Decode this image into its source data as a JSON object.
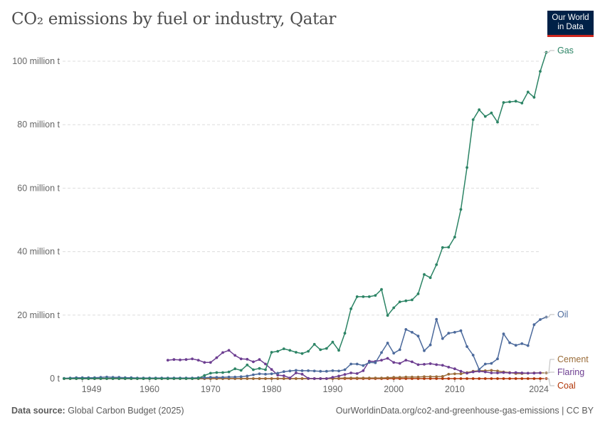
{
  "title_part1": "CO",
  "title_sub": "₂",
  "title_part2": " emissions by fuel or industry, Qatar",
  "logo": {
    "line1": "Our World",
    "line2": "in Data"
  },
  "footer": {
    "source_label": "Data source:",
    "source_value": "Global Carbon Budget (2025)",
    "url": "OurWorldinData.org/co2-and-greenhouse-gas-emissions | CC BY"
  },
  "chart_data": {
    "type": "line",
    "xlim": [
      1946,
      2024
    ],
    "ylim": [
      0,
      100
    ],
    "y_ticks": [
      0,
      20,
      40,
      60,
      80,
      100
    ],
    "y_tick_labels": [
      "0 t",
      "20 million t",
      "40 million t",
      "60 million t",
      "80 million t",
      "100 million t"
    ],
    "x_ticks": [
      1949,
      1960,
      1970,
      1980,
      1990,
      2000,
      2010,
      2024
    ],
    "x_tick_labels": [
      "1949",
      "1960",
      "1970",
      "1980",
      "1990",
      "2000",
      "2010",
      "2024"
    ],
    "grid": "horizontal dashed",
    "legend": "line-end labels on right",
    "series": [
      {
        "name": "Gas",
        "color": "#2c8465",
        "start": 1946,
        "values": [
          0,
          0,
          0,
          0,
          0,
          0,
          0,
          0,
          0,
          0,
          0,
          0,
          0,
          0,
          0,
          0,
          0,
          0,
          0,
          0,
          0,
          0,
          0.1,
          1,
          1.7,
          1.9,
          1.9,
          2.1,
          3.1,
          2.6,
          4.3,
          2.8,
          3.2,
          2.8,
          8.3,
          8.6,
          9.4,
          8.9,
          8.3,
          7.9,
          8.6,
          10.8,
          9.1,
          9.5,
          11.5,
          8.9,
          14.3,
          22,
          25.8,
          25.8,
          25.8,
          26.2,
          28.1,
          19.9,
          22.3,
          24.2,
          24.5,
          24.8,
          26.7,
          32.8,
          31.8,
          35.9,
          41.3,
          41.4,
          44.6,
          53.3,
          66.5,
          81.6,
          84.7,
          82.6,
          83.7,
          80.8,
          87,
          87.2,
          87.4,
          86.8,
          90.3,
          88.6,
          96.8,
          102.8
        ]
      },
      {
        "name": "Oil",
        "color": "#4c6a9c",
        "start": 1946,
        "values": [
          0.1,
          0.2,
          0.3,
          0.3,
          0.3,
          0.3,
          0.4,
          0.5,
          0.4,
          0.4,
          0.3,
          0.3,
          0.2,
          0.2,
          0.2,
          0.2,
          0.2,
          0.2,
          0.2,
          0.2,
          0.2,
          0.2,
          0.3,
          0.3,
          0.4,
          0.4,
          0.4,
          0.5,
          0.5,
          0.6,
          0.8,
          1.2,
          1.5,
          1.4,
          1.5,
          1.7,
          2.2,
          2.4,
          2.6,
          2.5,
          2.5,
          2.4,
          2.3,
          2.3,
          2.5,
          2.4,
          2.8,
          4.6,
          4.6,
          4.1,
          5.1,
          5,
          8.2,
          11.2,
          8,
          9.1,
          15.5,
          14.6,
          13.4,
          8.8,
          10.6,
          18.7,
          12.6,
          14.3,
          14.6,
          15.1,
          10.1,
          7.4,
          2.9,
          4.6,
          4.8,
          6.2,
          14.1,
          11.3,
          10.5,
          11,
          10.4,
          17,
          18.6,
          19.4
        ]
      },
      {
        "name": "Cement",
        "color": "#9a6c39",
        "start": 1946,
        "values": [
          0,
          0,
          0,
          0,
          0,
          0,
          0,
          0,
          0,
          0,
          0,
          0,
          0,
          0,
          0,
          0,
          0,
          0,
          0,
          0,
          0,
          0,
          0,
          0,
          0,
          0,
          0,
          0,
          0,
          0,
          0,
          0,
          0,
          0,
          0,
          0,
          0,
          0,
          0,
          0,
          0,
          0,
          0,
          0,
          0.1,
          0.1,
          0.2,
          0.2,
          0.2,
          0.2,
          0.2,
          0.2,
          0.2,
          0.3,
          0.4,
          0.4,
          0.5,
          0.5,
          0.5,
          0.6,
          0.6,
          0.6,
          0.7,
          1.4,
          1.5,
          1.5,
          1.9,
          2.3,
          2.5,
          2.5,
          2.6,
          2.4,
          2.1,
          1.9,
          1.6,
          1.6,
          1.7,
          1.8,
          1.8,
          1.8
        ]
      },
      {
        "name": "Flaring",
        "color": "#6d3e91",
        "start": 1963,
        "values": [
          5.8,
          6,
          5.9,
          6,
          6.2,
          5.8,
          5.1,
          5.1,
          6.6,
          8.2,
          8.9,
          7.3,
          6.2,
          6.1,
          5.3,
          6,
          4.6,
          2.9,
          1.1,
          0.9,
          0.2,
          1.8,
          1.4,
          0.1,
          0,
          0,
          0,
          0.4,
          0.8,
          1.3,
          1.8,
          1.6,
          2.5,
          5.5,
          5.4,
          5.8,
          6.4,
          5.1,
          4.8,
          5.8,
          5.3,
          4.4,
          4.5,
          4.7,
          4.4,
          4.2,
          3.6,
          3.1,
          2.3,
          1.7,
          2.1,
          2.3,
          2.1,
          1.8,
          1.8,
          1.9,
          1.8,
          1.9,
          1.8,
          1.7,
          1.7,
          1.8
        ]
      },
      {
        "name": "Coal",
        "color": "#b13507",
        "start": 1946,
        "values": [
          0,
          0,
          0,
          0,
          0,
          0,
          0,
          0,
          0,
          0,
          0,
          0,
          0,
          0,
          0,
          0,
          0,
          0,
          0,
          0,
          0,
          0,
          0,
          0,
          0,
          0,
          0,
          0,
          0,
          0,
          0,
          0,
          0,
          0,
          0,
          0,
          0,
          0,
          0,
          0,
          0,
          0,
          0,
          0,
          0,
          0,
          0,
          0,
          0,
          0,
          0,
          0,
          0,
          0,
          0,
          0,
          0,
          0,
          0,
          0,
          0,
          0,
          0,
          0,
          0,
          0,
          0,
          0,
          0,
          0,
          0,
          0,
          0,
          0,
          0,
          0,
          0,
          0,
          0,
          0
        ]
      }
    ]
  }
}
